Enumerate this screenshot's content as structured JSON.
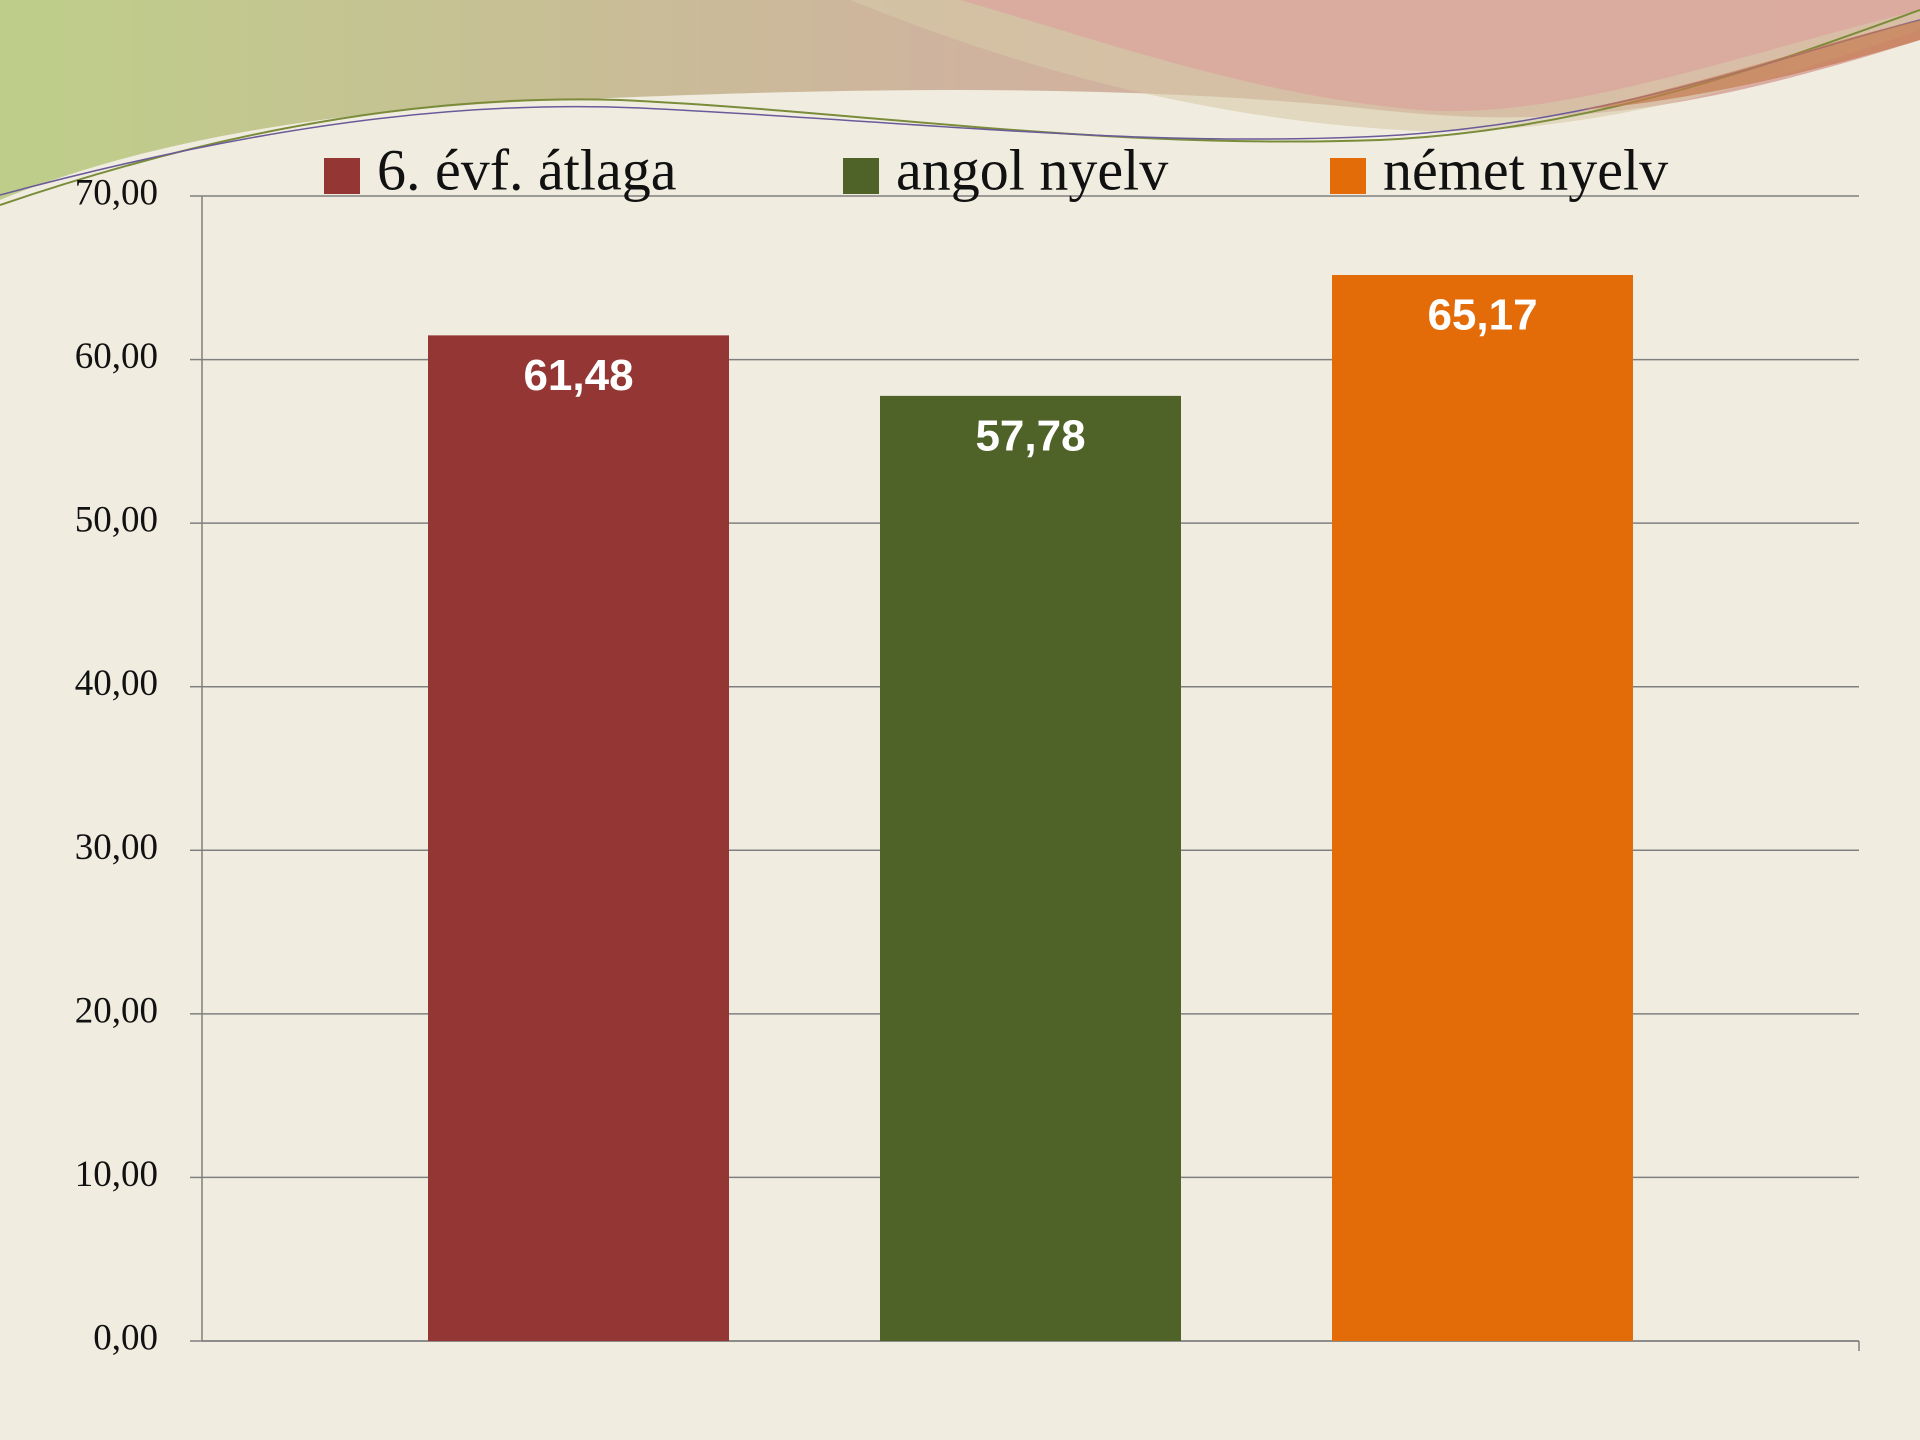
{
  "chart_data": {
    "type": "bar",
    "categories": [
      null
    ],
    "series": [
      {
        "name": "6. évf. átlaga",
        "color": "#943634",
        "values": [
          61.48
        ],
        "value_labels": [
          "61,48"
        ]
      },
      {
        "name": "angol nyelv",
        "color": "#4f6228",
        "values": [
          57.78
        ],
        "value_labels": [
          "57,78"
        ]
      },
      {
        "name": "német nyelv",
        "color": "#e36c09",
        "values": [
          65.17
        ],
        "value_labels": [
          "65,17"
        ]
      }
    ],
    "ylim": [
      0,
      70
    ],
    "yticks": [
      {
        "value": 0,
        "label": "0,00"
      },
      {
        "value": 10,
        "label": "10,00"
      },
      {
        "value": 20,
        "label": "20,00"
      },
      {
        "value": 30,
        "label": "30,00"
      },
      {
        "value": 40,
        "label": "40,00"
      },
      {
        "value": 50,
        "label": "50,00"
      },
      {
        "value": 60,
        "label": "60,00"
      },
      {
        "value": 70,
        "label": "70,00"
      }
    ],
    "grid": true,
    "legend": "top"
  }
}
